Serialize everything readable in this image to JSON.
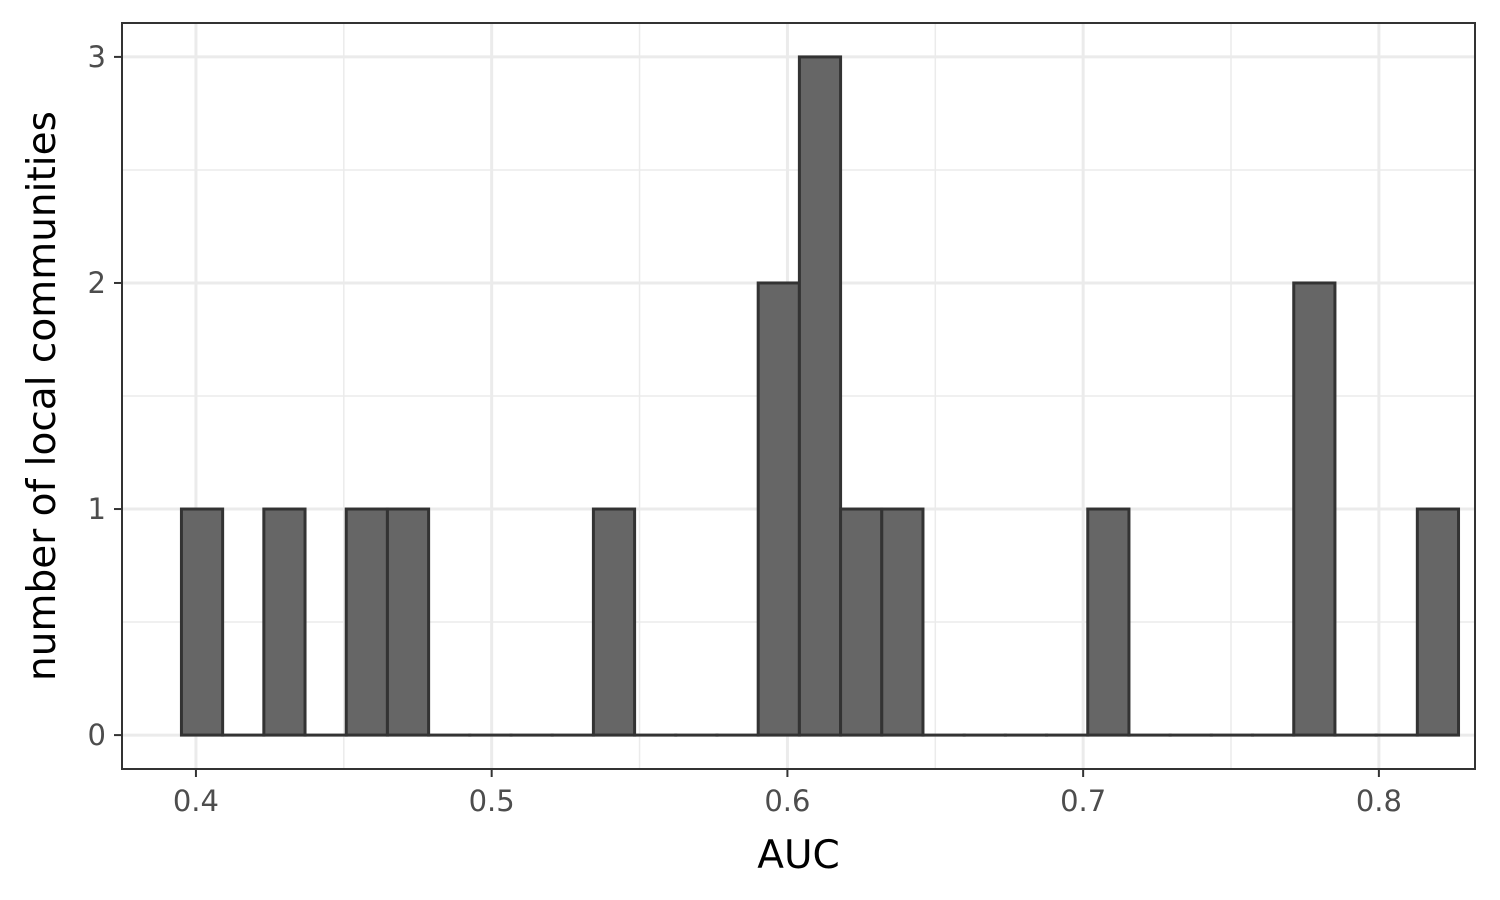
{
  "chart_data": {
    "type": "bar",
    "subtype": "histogram",
    "title": "",
    "xlabel": "AUC",
    "ylabel": "number of local communities",
    "xlim": [
      0.375,
      0.8325
    ],
    "ylim": [
      -0.15,
      3.15
    ],
    "x_ticks": [
      {
        "value": 0.4,
        "label": "0.4"
      },
      {
        "value": 0.5,
        "label": "0.5"
      },
      {
        "value": 0.6,
        "label": "0.6"
      },
      {
        "value": 0.7,
        "label": "0.7"
      },
      {
        "value": 0.8,
        "label": "0.8"
      }
    ],
    "y_ticks": [
      {
        "value": 0,
        "label": "0"
      },
      {
        "value": 1,
        "label": "1"
      },
      {
        "value": 2,
        "label": "2"
      },
      {
        "value": 3,
        "label": "3"
      }
    ],
    "x_minor_gridlines": [
      0.45,
      0.55,
      0.65,
      0.75
    ],
    "y_minor_gridlines": [
      0.5,
      1.5,
      2.5
    ],
    "grid": true,
    "bin_start": 0.3951,
    "bin_width": 0.01393,
    "counts": [
      1,
      0,
      1,
      0,
      1,
      1,
      0,
      0,
      0,
      0,
      1,
      0,
      0,
      0,
      2,
      3,
      1,
      1,
      0,
      0,
      0,
      0,
      1,
      0,
      0,
      0,
      0,
      2,
      0,
      0,
      1
    ],
    "colors": {
      "bar_fill": "#666666",
      "bar_stroke": "#333333",
      "grid": "#ebebeb",
      "panel_border": "#333333",
      "tick_text": "#4d4d4d",
      "axis_title": "#000000"
    }
  }
}
